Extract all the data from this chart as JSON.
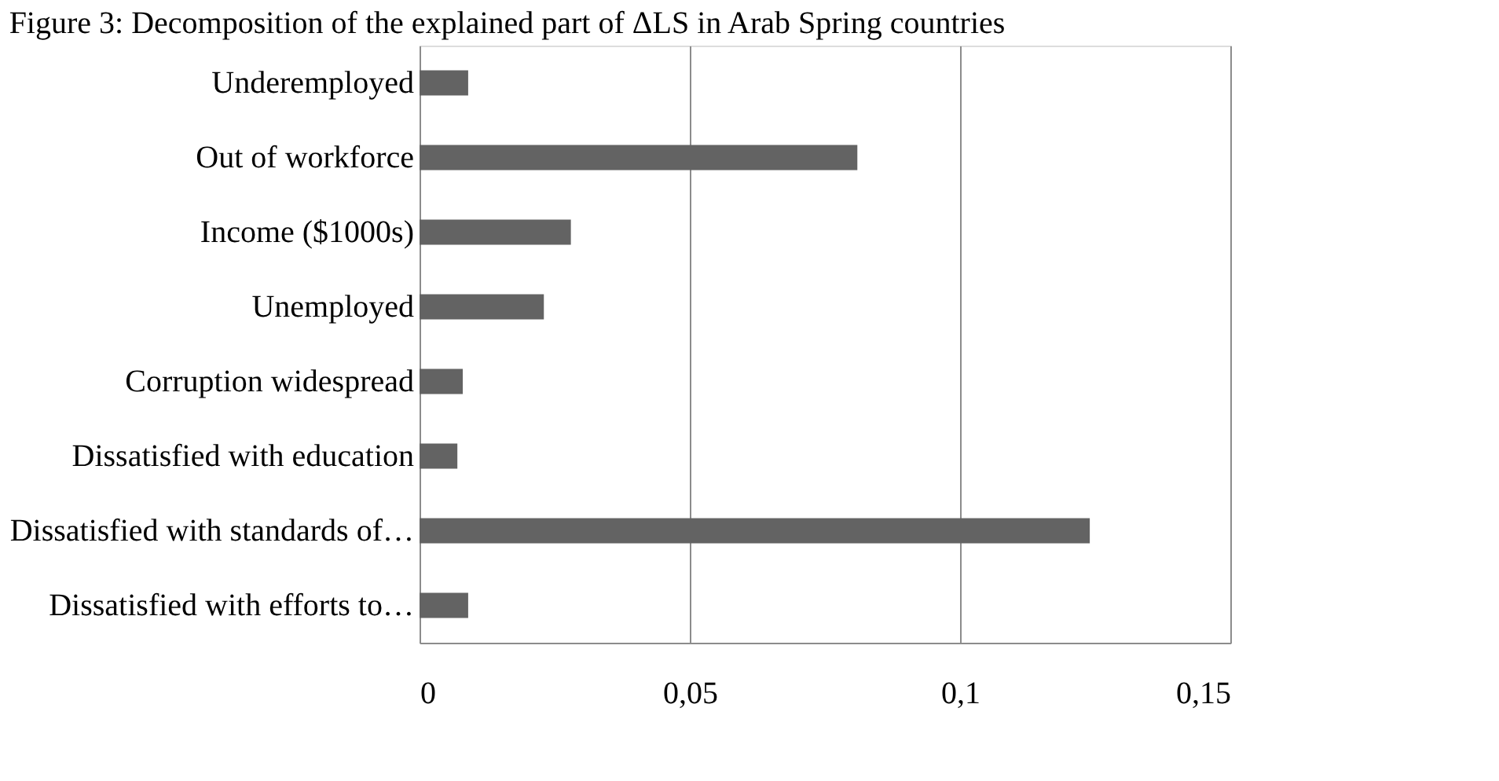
{
  "chart_data": {
    "type": "bar",
    "orientation": "horizontal",
    "title": "Figure 3: Decomposition of the explained part of ΔLS in Arab Spring countries",
    "categories": [
      "Underemployed",
      "Out of workforce",
      "Income ($1000s)",
      "Unemployed",
      "Corruption widespread",
      "Dissatisfied with education",
      "Dissatisfied with standards of…",
      "Dissatisfied with efforts to…"
    ],
    "values": [
      0.009,
      0.081,
      0.028,
      0.023,
      0.008,
      0.007,
      0.124,
      0.009
    ],
    "color": "#636363",
    "xlim": [
      0,
      0.15
    ],
    "xticks": [
      0,
      {
        "value": 0.05,
        "label": "0,05"
      },
      {
        "value": 0.1,
        "label": "0,1"
      },
      {
        "value": 0.15,
        "label": "0,15"
      }
    ],
    "grid": "x"
  }
}
